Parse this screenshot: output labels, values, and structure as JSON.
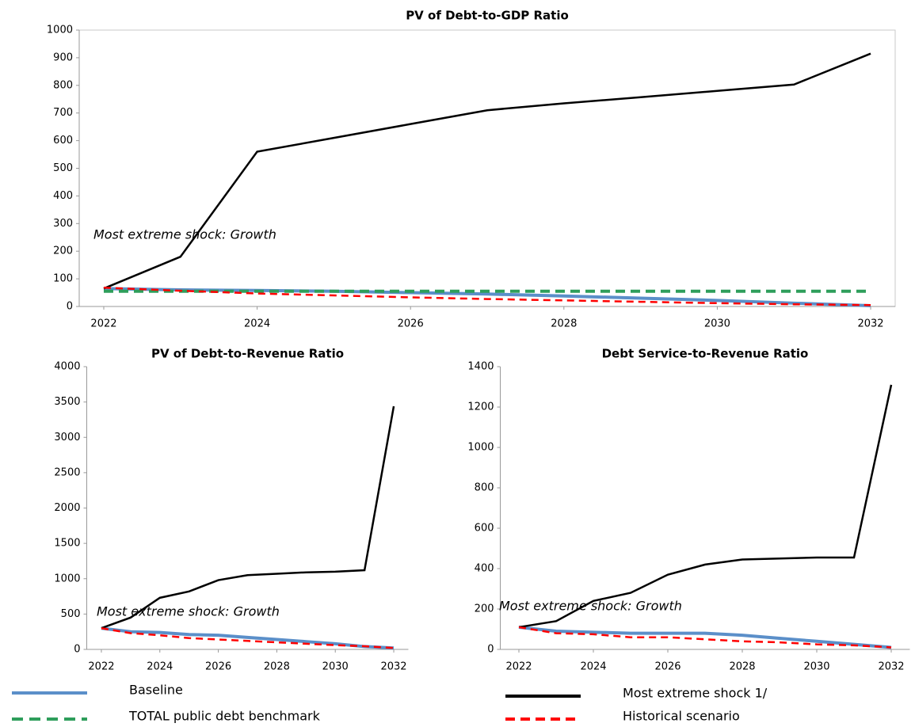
{
  "chart_data": [
    {
      "type": "line",
      "title": "PV of Debt-to-GDP Ratio",
      "annotation": "Most extreme shock: Growth",
      "x": [
        2022,
        2023,
        2024,
        2025,
        2026,
        2027,
        2028,
        2029,
        2030,
        2031,
        2032
      ],
      "xlim": [
        2021.68,
        2032.32
      ],
      "xticks": [
        2022,
        2024,
        2026,
        2028,
        2030,
        2032
      ],
      "ylim": [
        0,
        1000
      ],
      "yticks": [
        0,
        100,
        200,
        300,
        400,
        500,
        600,
        700,
        800,
        900,
        1000
      ],
      "series": [
        {
          "name": "Baseline",
          "color": "#5b8fc9",
          "values": [
            65,
            60,
            58,
            55,
            50,
            45,
            38,
            30,
            22,
            12,
            3
          ]
        },
        {
          "name": "TOTAL public debt benchmark",
          "color": "#2e9e5b",
          "dashed": true,
          "values": [
            55,
            55,
            55,
            55,
            55,
            55,
            55,
            55,
            55,
            55,
            55
          ]
        },
        {
          "name": "Most extreme shock 1/",
          "color": "#000000",
          "values": [
            65,
            180,
            560,
            610,
            660,
            710,
            735,
            757,
            780,
            803,
            915
          ]
        },
        {
          "name": "Historical scenario",
          "color": "#ff0000",
          "dashed": true,
          "values": [
            68,
            57,
            47,
            40,
            33,
            27,
            22,
            17,
            12,
            8,
            5
          ]
        }
      ]
    },
    {
      "type": "line",
      "title": "PV of Debt-to-Revenue Ratio",
      "annotation": "Most extreme shock: Growth",
      "x": [
        2022,
        2023,
        2024,
        2025,
        2026,
        2027,
        2028,
        2029,
        2030,
        2031,
        2032
      ],
      "xlim": [
        2021.5,
        2032.5
      ],
      "xticks": [
        2022,
        2024,
        2026,
        2028,
        2030,
        2032
      ],
      "ylim": [
        0,
        4000
      ],
      "yticks": [
        0,
        500,
        1000,
        1500,
        2000,
        2500,
        3000,
        3500,
        4000
      ],
      "series": [
        {
          "name": "Baseline",
          "color": "#5b8fc9",
          "values": [
            300,
            250,
            240,
            210,
            200,
            170,
            140,
            110,
            80,
            40,
            20
          ]
        },
        {
          "name": "Most extreme shock 1/",
          "color": "#000000",
          "values": [
            300,
            450,
            730,
            820,
            980,
            1050,
            1070,
            1090,
            1100,
            1120,
            3440
          ]
        },
        {
          "name": "Historical scenario",
          "color": "#ff0000",
          "dashed": true,
          "values": [
            300,
            230,
            200,
            160,
            140,
            120,
            100,
            80,
            60,
            45,
            20
          ]
        }
      ]
    },
    {
      "type": "line",
      "title": "Debt Service-to-Revenue Ratio",
      "annotation": "Most extreme shock: Growth",
      "x": [
        2022,
        2023,
        2024,
        2025,
        2026,
        2027,
        2028,
        2029,
        2030,
        2031,
        2032
      ],
      "xlim": [
        2021.5,
        2032.5
      ],
      "xticks": [
        2022,
        2024,
        2026,
        2028,
        2030,
        2032
      ],
      "ylim": [
        0,
        1400
      ],
      "yticks": [
        0,
        200,
        400,
        600,
        800,
        1000,
        1200,
        1400
      ],
      "series": [
        {
          "name": "Baseline",
          "color": "#5b8fc9",
          "values": [
            110,
            90,
            85,
            80,
            80,
            80,
            70,
            55,
            40,
            25,
            10
          ]
        },
        {
          "name": "Most extreme shock 1/",
          "color": "#000000",
          "values": [
            110,
            140,
            240,
            280,
            370,
            420,
            445,
            450,
            455,
            455,
            1310
          ]
        },
        {
          "name": "Historical scenario",
          "color": "#ff0000",
          "dashed": true,
          "values": [
            110,
            80,
            75,
            60,
            60,
            50,
            40,
            35,
            25,
            20,
            10
          ]
        }
      ]
    }
  ]
}
